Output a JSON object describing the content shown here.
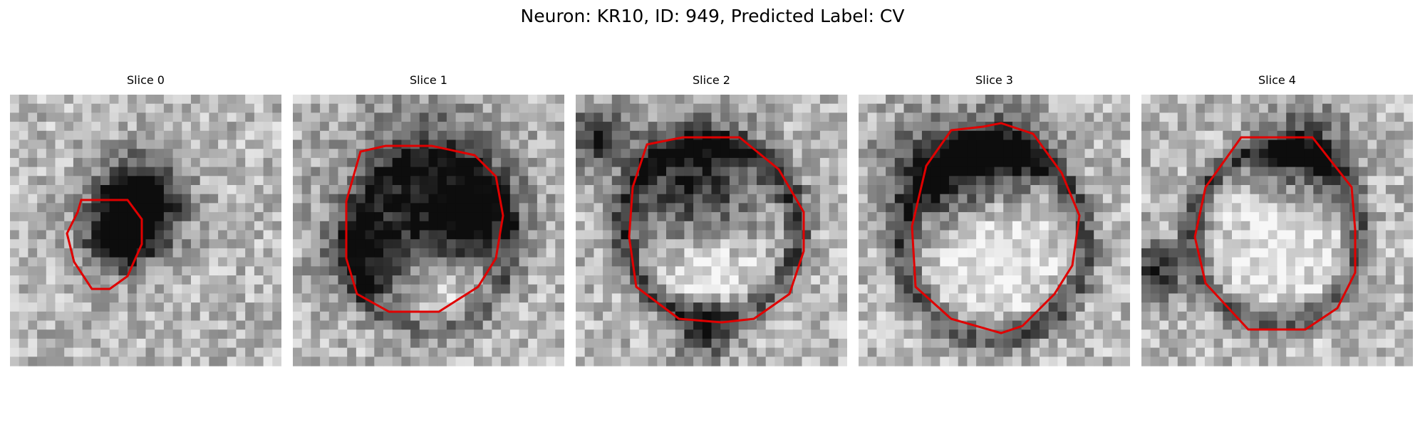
{
  "figure": {
    "title": "Neuron: KR10, ID: 949, Predicted Label: CV",
    "contour_color": "#e00000"
  },
  "panels": [
    {
      "title": "Slice 0"
    },
    {
      "title": "Slice 1"
    },
    {
      "title": "Slice 2"
    },
    {
      "title": "Slice 3"
    },
    {
      "title": "Slice 4"
    }
  ]
}
